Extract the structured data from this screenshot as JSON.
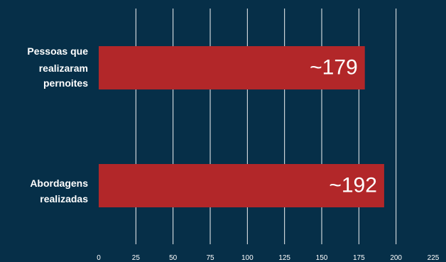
{
  "colors": {
    "background": "#062f48",
    "bar": "#b22729",
    "text": "#ffffff",
    "grid": "#ffffff"
  },
  "chart_data": {
    "type": "bar",
    "orientation": "horizontal",
    "categories": [
      "Pessoas que realizaram pernoites",
      "Abordagens realizadas"
    ],
    "category_label_lines": [
      [
        "Pessoas que",
        "realizaram",
        "pernoites"
      ],
      [
        "Abordagens",
        "realizadas"
      ]
    ],
    "values": [
      179,
      192
    ],
    "data_labels": [
      "~179",
      "~192"
    ],
    "xlim": [
      0,
      225
    ],
    "xticks": [
      0,
      25,
      50,
      75,
      100,
      125,
      150,
      175,
      200,
      225
    ],
    "xtick_labels": [
      "0",
      "25",
      "50",
      "75",
      "100",
      "125",
      "150",
      "175",
      "200",
      "225"
    ],
    "grid": true,
    "legend": "none",
    "title": "",
    "xlabel": "",
    "ylabel": ""
  }
}
